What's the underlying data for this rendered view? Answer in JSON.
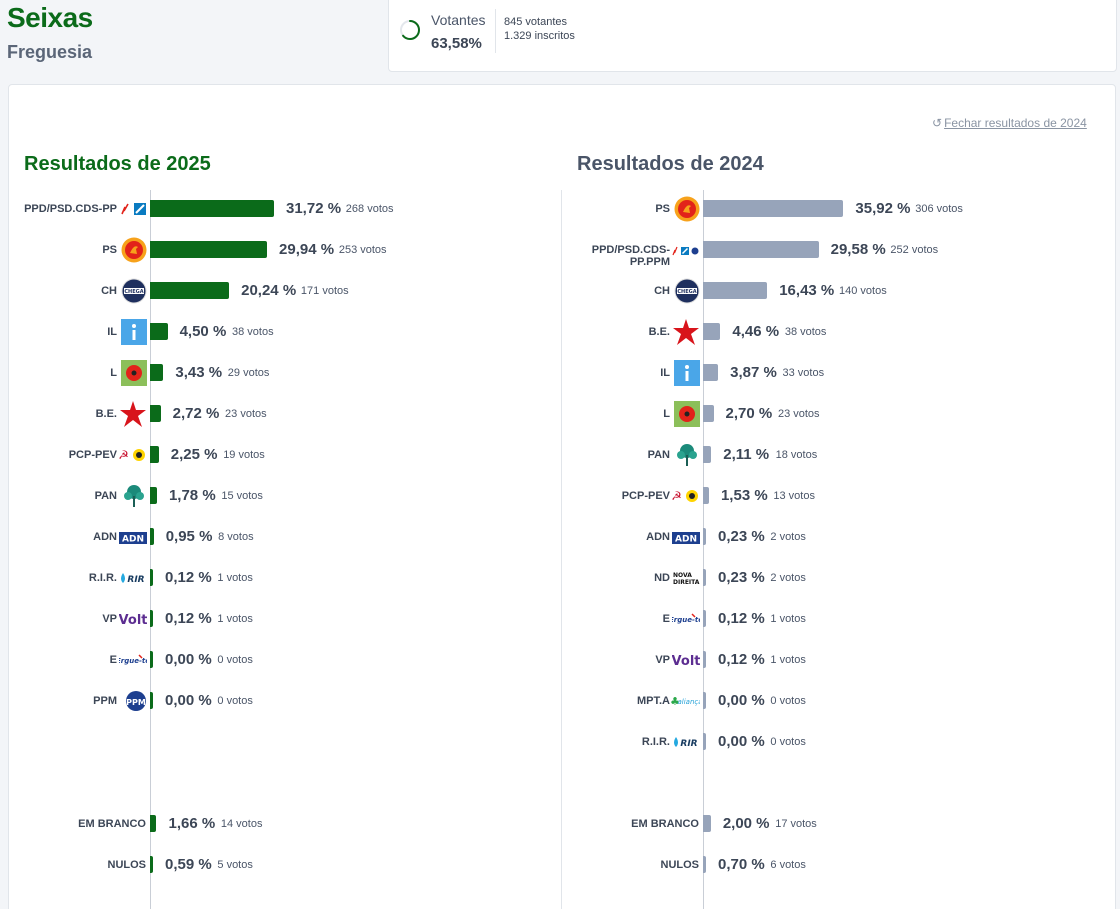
{
  "header": {
    "title": "Seixas",
    "subtitle": "Freguesia"
  },
  "turnout": {
    "label": "Votantes",
    "percent": "63,58%",
    "percent_value": 63.58,
    "voters": "845 votantes",
    "registered": "1.329 inscritos",
    "ring_color": "#0b6b1a"
  },
  "close_link": "Fechar resultados de 2024",
  "colors": {
    "bar_2025": "#0b6b1a",
    "bar_2024": "#97a4ba"
  },
  "results_2025": {
    "title": "Resultados de 2025",
    "parties": [
      {
        "name": "PPD/PSD.CDS-PP",
        "logo": "psd-cds-logo-icon",
        "percent_value": 31.72,
        "percent": "31,72 %",
        "votes": "268 votos"
      },
      {
        "name": "PS",
        "logo": "ps-logo-icon",
        "percent_value": 29.94,
        "percent": "29,94 %",
        "votes": "253 votos"
      },
      {
        "name": "CH",
        "logo": "chega-logo-icon",
        "percent_value": 20.24,
        "percent": "20,24 %",
        "votes": "171 votos"
      },
      {
        "name": "IL",
        "logo": "il-logo-icon",
        "percent_value": 4.5,
        "percent": "4,50 %",
        "votes": "38 votos"
      },
      {
        "name": "L",
        "logo": "livre-logo-icon",
        "percent_value": 3.43,
        "percent": "3,43 %",
        "votes": "29 votos"
      },
      {
        "name": "B.E.",
        "logo": "be-star-logo-icon",
        "percent_value": 2.72,
        "percent": "2,72 %",
        "votes": "23 votos"
      },
      {
        "name": "PCP-PEV",
        "logo": "pcp-pev-logo-icon",
        "percent_value": 2.25,
        "percent": "2,25 %",
        "votes": "19 votos"
      },
      {
        "name": "PAN",
        "logo": "pan-tree-logo-icon",
        "percent_value": 1.78,
        "percent": "1,78 %",
        "votes": "15 votos"
      },
      {
        "name": "ADN",
        "logo": "adn-logo-icon",
        "percent_value": 0.95,
        "percent": "0,95 %",
        "votes": "8 votos"
      },
      {
        "name": "R.I.R.",
        "logo": "rir-logo-icon",
        "percent_value": 0.12,
        "percent": "0,12 %",
        "votes": "1 votos"
      },
      {
        "name": "VP",
        "logo": "volt-logo-icon",
        "percent_value": 0.12,
        "percent": "0,12 %",
        "votes": "1 votos"
      },
      {
        "name": "E",
        "logo": "ergue-te-logo-icon",
        "percent_value": 0.0,
        "percent": "0,00 %",
        "votes": "0 votos"
      },
      {
        "name": "PPM",
        "logo": "ppm-logo-icon",
        "percent_value": 0.0,
        "percent": "0,00 %",
        "votes": "0 votos"
      }
    ],
    "blank": {
      "name": "EM BRANCO",
      "percent_value": 1.66,
      "percent": "1,66 %",
      "votes": "14 votos"
    },
    "null": {
      "name": "NULOS",
      "percent_value": 0.59,
      "percent": "0,59 %",
      "votes": "5 votos"
    }
  },
  "results_2024": {
    "title": "Resultados de 2024",
    "parties": [
      {
        "name": "PS",
        "logo": "ps-logo-icon",
        "percent_value": 35.92,
        "percent": "35,92 %",
        "votes": "306 votos"
      },
      {
        "name": "PPD/PSD.CDS-PP.PPM",
        "name_lines": [
          "PPD/PSD.CDS-",
          "PP.PPM"
        ],
        "logo": "ad-psd-cds-ppm-logo-icon",
        "percent_value": 29.58,
        "percent": "29,58 %",
        "votes": "252 votos"
      },
      {
        "name": "CH",
        "logo": "chega-logo-icon",
        "percent_value": 16.43,
        "percent": "16,43 %",
        "votes": "140 votos"
      },
      {
        "name": "B.E.",
        "logo": "be-star-logo-icon",
        "percent_value": 4.46,
        "percent": "4,46 %",
        "votes": "38 votos"
      },
      {
        "name": "IL",
        "logo": "il-logo-icon",
        "percent_value": 3.87,
        "percent": "3,87 %",
        "votes": "33 votos"
      },
      {
        "name": "L",
        "logo": "livre-logo-icon",
        "percent_value": 2.7,
        "percent": "2,70 %",
        "votes": "23 votos"
      },
      {
        "name": "PAN",
        "logo": "pan-tree-logo-icon",
        "percent_value": 2.11,
        "percent": "2,11 %",
        "votes": "18 votos"
      },
      {
        "name": "PCP-PEV",
        "logo": "pcp-pev-logo-icon",
        "percent_value": 1.53,
        "percent": "1,53 %",
        "votes": "13 votos"
      },
      {
        "name": "ADN",
        "logo": "adn-logo-icon",
        "percent_value": 0.23,
        "percent": "0,23 %",
        "votes": "2 votos"
      },
      {
        "name": "ND",
        "logo": "nova-direita-logo-icon",
        "percent_value": 0.23,
        "percent": "0,23 %",
        "votes": "2 votos"
      },
      {
        "name": "E",
        "logo": "ergue-te-logo-icon",
        "percent_value": 0.12,
        "percent": "0,12 %",
        "votes": "1 votos"
      },
      {
        "name": "VP",
        "logo": "volt-logo-icon",
        "percent_value": 0.12,
        "percent": "0,12 %",
        "votes": "1 votos"
      },
      {
        "name": "MPT.A",
        "logo": "mpt-alianca-logo-icon",
        "percent_value": 0.0,
        "percent": "0,00 %",
        "votes": "0 votos"
      },
      {
        "name": "R.I.R.",
        "logo": "rir-logo-icon",
        "percent_value": 0.0,
        "percent": "0,00 %",
        "votes": "0 votos"
      }
    ],
    "blank": {
      "name": "EM BRANCO",
      "percent_value": 2.0,
      "percent": "2,00 %",
      "votes": "17 votos"
    },
    "null": {
      "name": "NULOS",
      "percent_value": 0.7,
      "percent": "0,70 %",
      "votes": "6 votos"
    }
  }
}
